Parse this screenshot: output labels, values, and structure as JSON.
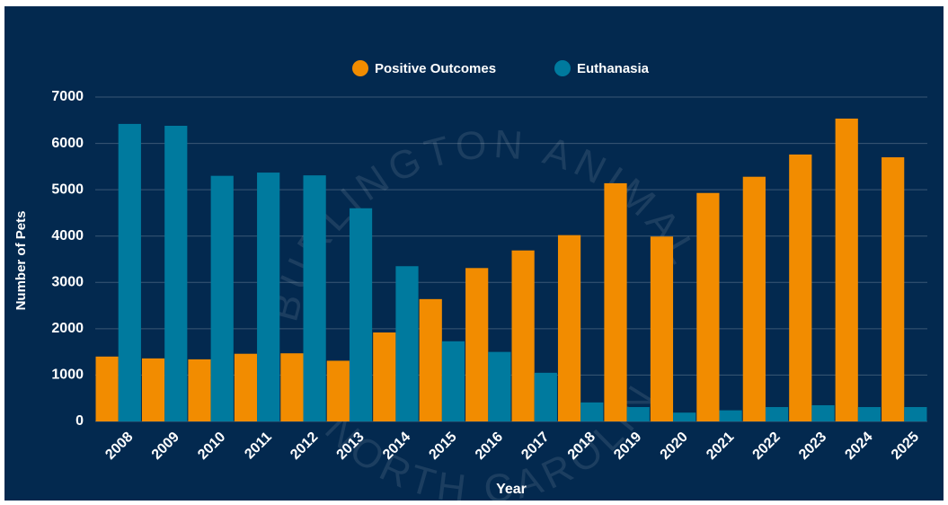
{
  "chart_data": {
    "type": "bar",
    "watermark": [
      "BURLINGTON ANIMAL SERVICES",
      "NORTH CAROLINA"
    ],
    "x_label": "Year",
    "y_label": "Number of Pets",
    "categories": [
      "2008",
      "2009",
      "2010",
      "2011",
      "2012",
      "2013",
      "2014",
      "2015",
      "2016",
      "2017",
      "2018",
      "2019",
      "2020",
      "2021",
      "2022",
      "2023",
      "2024",
      "2025"
    ],
    "series": [
      {
        "name": "Positive Outcomes",
        "color": "#f28c00",
        "values": [
          1400,
          1360,
          1340,
          1460,
          1470,
          1310,
          1920,
          2640,
          3310,
          3690,
          4020,
          5140,
          3990,
          4930,
          5280,
          5760,
          6535,
          5700
        ]
      },
      {
        "name": "Euthanasia",
        "color": "#007a9e",
        "values": [
          6420,
          6380,
          5300,
          5370,
          5310,
          4600,
          3350,
          1730,
          1500,
          1050,
          410,
          310,
          190,
          240,
          310,
          350,
          310,
          310
        ]
      }
    ],
    "ylim": [
      0,
      7000
    ],
    "yticks": [
      0,
      1000,
      2000,
      3000,
      4000,
      5000,
      6000,
      7000
    ],
    "grid": true,
    "legend": "top"
  }
}
